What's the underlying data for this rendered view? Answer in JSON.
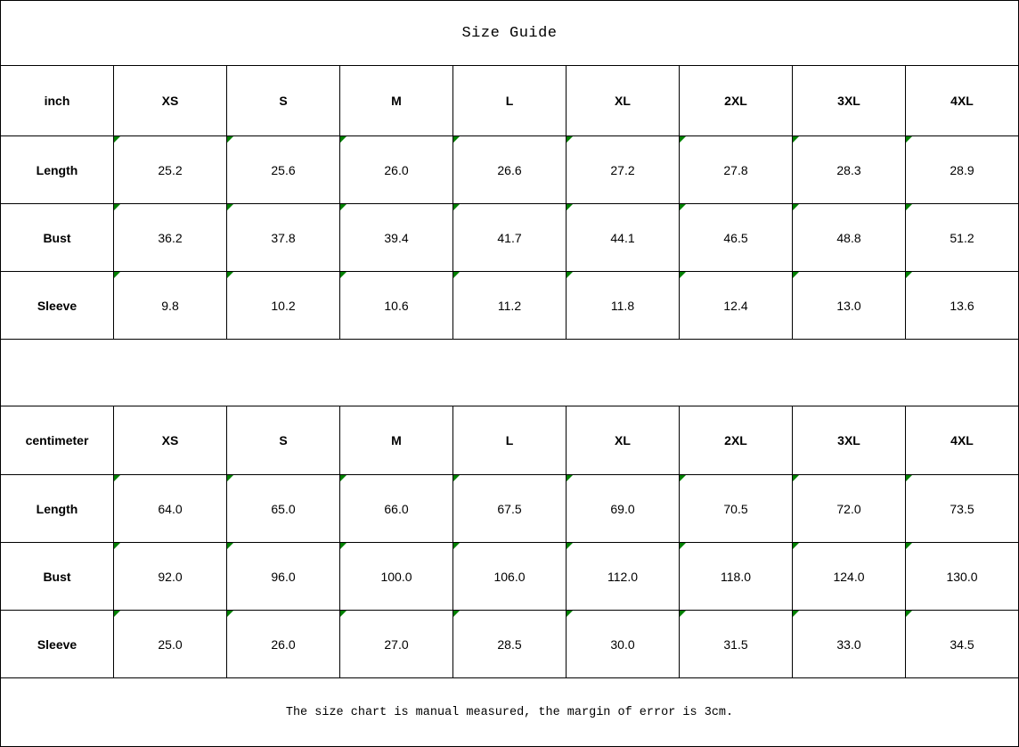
{
  "title": "Size Guide",
  "footer_note": "The size chart is manual measured, the margin of error is 3cm.",
  "colors": {
    "border": "#000000",
    "text": "#000000",
    "background": "#ffffff",
    "cell_flag_triangle": "#008000"
  },
  "icons": {
    "cell_flag": "green-triangle-icon"
  },
  "tables": [
    {
      "unit_label": "inch",
      "sizes": [
        "XS",
        "S",
        "M",
        "L",
        "XL",
        "2XL",
        "3XL",
        "4XL"
      ],
      "rows": [
        {
          "label": "Length",
          "values": [
            "25.2",
            "25.6",
            "26.0",
            "26.6",
            "27.2",
            "27.8",
            "28.3",
            "28.9"
          ]
        },
        {
          "label": "Bust",
          "values": [
            "36.2",
            "37.8",
            "39.4",
            "41.7",
            "44.1",
            "46.5",
            "48.8",
            "51.2"
          ]
        },
        {
          "label": "Sleeve",
          "values": [
            "9.8",
            "10.2",
            "10.6",
            "11.2",
            "11.8",
            "12.4",
            "13.0",
            "13.6"
          ]
        }
      ]
    },
    {
      "unit_label": "centimeter",
      "sizes": [
        "XS",
        "S",
        "M",
        "L",
        "XL",
        "2XL",
        "3XL",
        "4XL"
      ],
      "rows": [
        {
          "label": "Length",
          "values": [
            "64.0",
            "65.0",
            "66.0",
            "67.5",
            "69.0",
            "70.5",
            "72.0",
            "73.5"
          ]
        },
        {
          "label": "Bust",
          "values": [
            "92.0",
            "96.0",
            "100.0",
            "106.0",
            "112.0",
            "118.0",
            "124.0",
            "130.0"
          ]
        },
        {
          "label": "Sleeve",
          "values": [
            "25.0",
            "26.0",
            "27.0",
            "28.5",
            "30.0",
            "31.5",
            "33.0",
            "34.5"
          ]
        }
      ]
    }
  ]
}
